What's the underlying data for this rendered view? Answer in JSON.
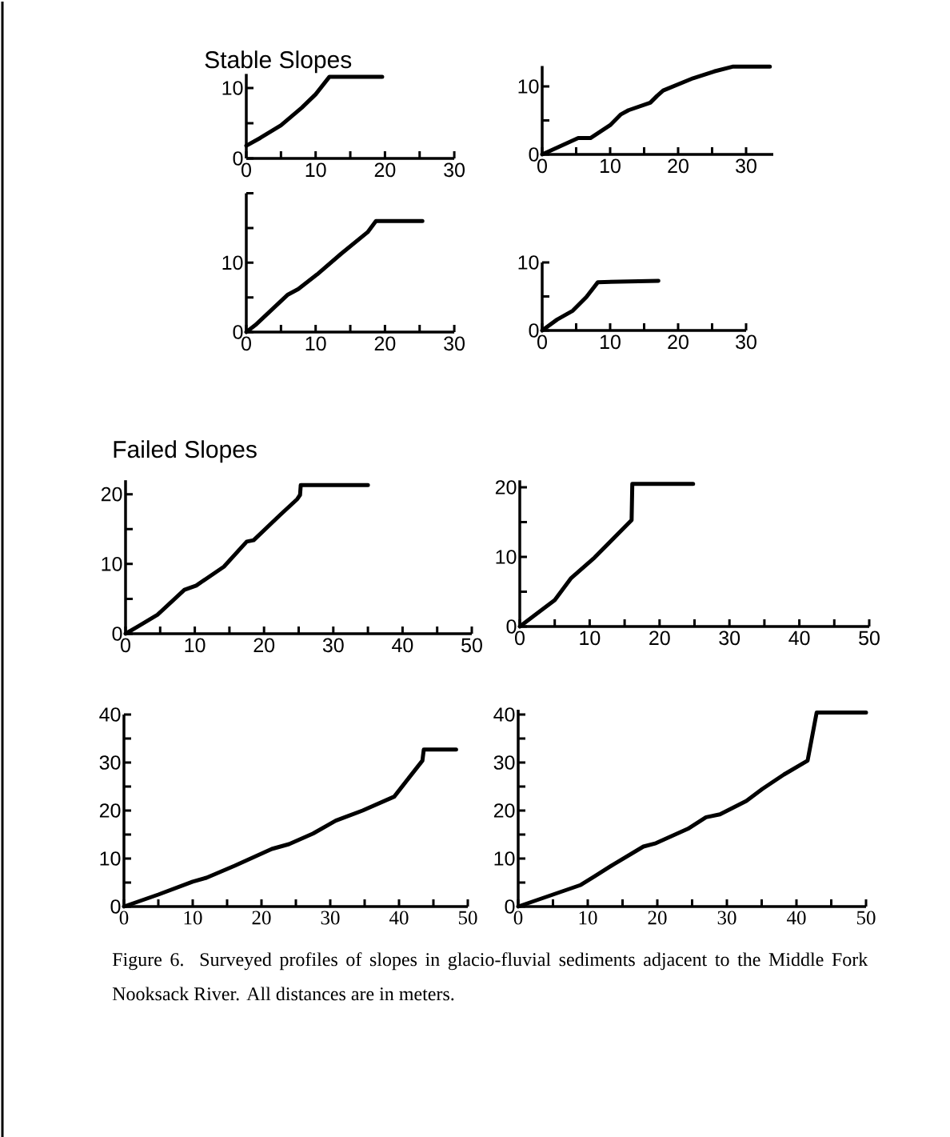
{
  "chart_data": [
    {
      "type": "line",
      "title": "Stable Slopes",
      "xlim": [
        0,
        30
      ],
      "ylim": [
        0,
        12
      ],
      "xticks": [
        0,
        {
          "value": 5,
          "label": null
        },
        10,
        {
          "value": 15,
          "label": null
        },
        20,
        {
          "value": 25,
          "label": null
        },
        30
      ],
      "yticks": [
        0,
        {
          "value": 5,
          "label": null
        },
        10
      ],
      "x": [
        0,
        2,
        5,
        8,
        10,
        12,
        19.6
      ],
      "series": [
        {
          "color": "#000000",
          "values": [
            1.8,
            2.9,
            4.7,
            7.2,
            9.1,
            11.6,
            11.6
          ]
        }
      ]
    },
    {
      "type": "line",
      "xlim": [
        0,
        34
      ],
      "ylim": [
        0,
        13
      ],
      "xticks": [
        0,
        {
          "value": 5,
          "label": null
        },
        10,
        {
          "value": 15,
          "label": null
        },
        20,
        {
          "value": 25,
          "label": null
        },
        30
      ],
      "yticks": [
        0,
        {
          "value": 5,
          "label": null
        },
        10
      ],
      "x": [
        0,
        5.3,
        7.1,
        10,
        11.6,
        12.7,
        15.9,
        16.9,
        17.8,
        22.2,
        25.3,
        28,
        33.5
      ],
      "series": [
        {
          "color": "#000000",
          "values": [
            0,
            2.4,
            2.4,
            4.3,
            5.9,
            6.5,
            7.6,
            8.6,
            9.4,
            11.2,
            12.2,
            12.9,
            12.9
          ]
        }
      ]
    },
    {
      "type": "line",
      "xlim": [
        0,
        30
      ],
      "ylim": [
        0,
        20
      ],
      "xticks": [
        0,
        {
          "value": 5,
          "label": null
        },
        10,
        {
          "value": 15,
          "label": null
        },
        20,
        {
          "value": 25,
          "label": null
        },
        30
      ],
      "yticks": [
        0,
        {
          "value": 5,
          "label": null
        },
        10,
        {
          "value": 15,
          "label": null
        },
        {
          "value": 20,
          "label": null
        }
      ],
      "x": [
        0,
        1.3,
        6,
        7.5,
        10.2,
        13.7,
        17.5,
        18.7,
        25.4
      ],
      "series": [
        {
          "color": "#000000",
          "values": [
            0,
            1,
            5.4,
            6.2,
            8.3,
            11.3,
            14.4,
            16,
            16
          ]
        }
      ]
    },
    {
      "type": "line",
      "xlim": [
        0,
        30
      ],
      "ylim": [
        0,
        10
      ],
      "xticks": [
        0,
        {
          "value": 5,
          "label": null
        },
        10,
        {
          "value": 15,
          "label": null
        },
        20,
        {
          "value": 25,
          "label": null
        },
        30
      ],
      "yticks": [
        0,
        {
          "value": 5,
          "label": null
        },
        10
      ],
      "x": [
        0,
        2.2,
        4.5,
        6.5,
        8.2,
        17.1
      ],
      "series": [
        {
          "color": "#000000",
          "values": [
            0,
            1.6,
            2.9,
            4.9,
            7.1,
            7.3
          ]
        }
      ]
    },
    {
      "type": "line",
      "title": "Failed Slopes",
      "xlim": [
        0,
        50
      ],
      "ylim": [
        0,
        22
      ],
      "xticks": [
        0,
        {
          "value": 5,
          "label": null
        },
        10,
        {
          "value": 15,
          "label": null
        },
        20,
        {
          "value": 25,
          "label": null
        },
        30,
        {
          "value": 35,
          "label": null
        },
        40,
        {
          "value": 45,
          "label": null
        },
        50
      ],
      "yticks": [
        0,
        {
          "value": 5,
          "label": null
        },
        10,
        {
          "value": 15,
          "label": null
        },
        20
      ],
      "x": [
        0,
        1.9,
        4.6,
        8.5,
        10.2,
        14.2,
        17.5,
        18.5,
        22.3,
        24.8,
        25.2,
        25.3,
        35
      ],
      "series": [
        {
          "color": "#000000",
          "values": [
            0,
            1.1,
            2.7,
            6.3,
            6.9,
            9.6,
            13.2,
            13.4,
            17,
            19.3,
            19.9,
            21.3,
            21.3
          ]
        }
      ]
    },
    {
      "type": "line",
      "xlim": [
        0,
        50
      ],
      "ylim": [
        0,
        21
      ],
      "xticks": [
        0,
        {
          "value": 5,
          "label": null
        },
        10,
        {
          "value": 15,
          "label": null
        },
        20,
        {
          "value": 25,
          "label": null
        },
        30,
        {
          "value": 35,
          "label": null
        },
        40,
        {
          "value": 45,
          "label": null
        },
        50
      ],
      "yticks": [
        0,
        {
          "value": 5,
          "label": null
        },
        10,
        {
          "value": 15,
          "label": null
        },
        20
      ],
      "x": [
        0,
        5,
        7.3,
        10.7,
        16,
        16.1,
        24.8
      ],
      "series": [
        {
          "color": "#000000",
          "values": [
            0,
            3.8,
            6.9,
            9.9,
            15.3,
            20.5,
            20.5
          ]
        }
      ]
    },
    {
      "type": "line",
      "xlim": [
        0,
        50
      ],
      "ylim": [
        0,
        40
      ],
      "xticks": [
        0,
        {
          "value": 5,
          "label": null
        },
        10,
        {
          "value": 15,
          "label": null
        },
        20,
        {
          "value": 25,
          "label": null
        },
        30,
        {
          "value": 35,
          "label": null
        },
        40,
        {
          "value": 45,
          "label": null
        },
        50
      ],
      "yticks": [
        0,
        {
          "value": 5,
          "label": null
        },
        10,
        {
          "value": 15,
          "label": null
        },
        20,
        {
          "value": 25,
          "label": null
        },
        30,
        {
          "value": 35,
          "label": null
        },
        40
      ],
      "x": [
        0,
        5,
        10,
        12,
        16.1,
        21.5,
        24,
        27.5,
        30.8,
        34.7,
        39.3,
        43.4,
        43.6,
        48.3
      ],
      "series": [
        {
          "color": "#000000",
          "values": [
            0,
            2.5,
            5.2,
            6,
            8.5,
            12,
            13,
            15.2,
            17.9,
            20,
            22.9,
            30.4,
            32.7,
            32.7
          ]
        }
      ]
    },
    {
      "type": "line",
      "xlim": [
        0,
        50
      ],
      "ylim": [
        0,
        41
      ],
      "xticks": [
        0,
        {
          "value": 5,
          "label": null
        },
        10,
        {
          "value": 15,
          "label": null
        },
        20,
        {
          "value": 25,
          "label": null
        },
        30,
        {
          "value": 35,
          "label": null
        },
        40,
        {
          "value": 45,
          "label": null
        },
        50
      ],
      "yticks": [
        0,
        {
          "value": 5,
          "label": null
        },
        10,
        {
          "value": 15,
          "label": null
        },
        20,
        {
          "value": 25,
          "label": null
        },
        30,
        {
          "value": 35,
          "label": null
        },
        40
      ],
      "x": [
        0,
        5,
        9,
        11,
        13.6,
        18,
        19.8,
        24.4,
        27,
        29,
        32.8,
        35.1,
        38.2,
        41.6,
        42.9,
        50
      ],
      "series": [
        {
          "color": "#000000",
          "values": [
            0,
            2.5,
            4.5,
            6.3,
            8.7,
            12.5,
            13.2,
            16.2,
            18.6,
            19.2,
            22,
            24.5,
            27.5,
            30.4,
            40.4,
            40.4
          ]
        }
      ],
      "annotations": [
        "Figure 6. Surveyed profiles of slopes in glacio-fluvial sediments adjacent to the Middle Fork Nooksack River. All distances are in meters."
      ]
    }
  ]
}
